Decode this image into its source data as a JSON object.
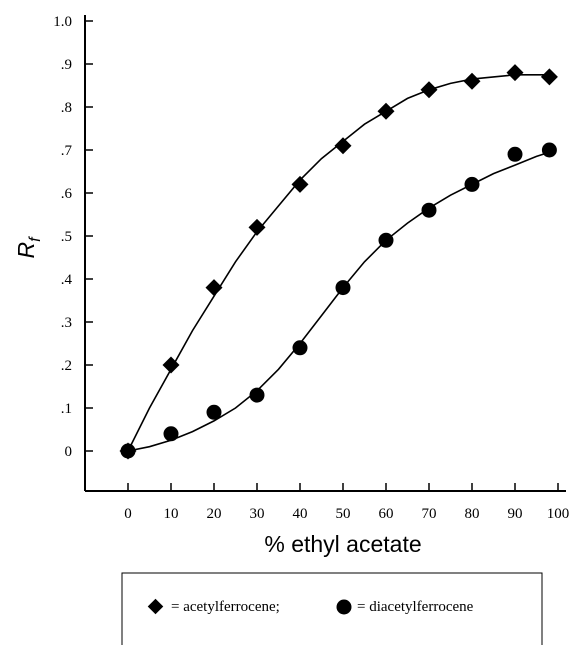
{
  "chart_data": {
    "type": "scatter",
    "title": "",
    "xlabel": "% ethyl acetate",
    "ylabel": "R",
    "ylabel_subscript": "f",
    "xlim": [
      -10,
      100
    ],
    "ylim": [
      -0.1,
      1.0
    ],
    "x_ticks": [
      0,
      10,
      20,
      30,
      40,
      50,
      60,
      70,
      80,
      90,
      100
    ],
    "x_tick_labels": [
      "0",
      "10",
      "20",
      "30",
      "40",
      "50",
      "60",
      "70",
      "80",
      "90",
      "100"
    ],
    "y_ticks": [
      0,
      0.1,
      0.2,
      0.3,
      0.4,
      0.5,
      0.6,
      0.7,
      0.8,
      0.9,
      1.0
    ],
    "y_tick_labels": [
      "0",
      ".1",
      ".2",
      ".3",
      ".4",
      ".5",
      ".6",
      ".7",
      ".8",
      ".9",
      "1.0"
    ],
    "grid": false,
    "legend_placement": "bottom",
    "series": [
      {
        "name": "acetylferrocene",
        "marker": "diamond",
        "x": [
          0,
          10,
          20,
          30,
          40,
          50,
          60,
          70,
          80,
          90,
          98
        ],
        "y": [
          0.0,
          0.2,
          0.38,
          0.52,
          0.62,
          0.71,
          0.79,
          0.84,
          0.86,
          0.88,
          0.87
        ],
        "fit_x": [
          0,
          5,
          10,
          15,
          20,
          25,
          30,
          35,
          40,
          45,
          50,
          55,
          60,
          65,
          70,
          75,
          80,
          85,
          90,
          95,
          98
        ],
        "fit_y": [
          0.0,
          0.1,
          0.19,
          0.28,
          0.36,
          0.44,
          0.51,
          0.57,
          0.63,
          0.68,
          0.72,
          0.76,
          0.79,
          0.82,
          0.84,
          0.855,
          0.865,
          0.87,
          0.875,
          0.875,
          0.875
        ]
      },
      {
        "name": "diacetylferrocene",
        "marker": "circle",
        "x": [
          0,
          10,
          20,
          30,
          40,
          50,
          60,
          70,
          80,
          90,
          98
        ],
        "y": [
          0.0,
          0.04,
          0.09,
          0.13,
          0.24,
          0.38,
          0.49,
          0.56,
          0.62,
          0.69,
          0.7
        ],
        "fit_x": [
          0,
          5,
          10,
          15,
          20,
          25,
          30,
          35,
          40,
          45,
          50,
          55,
          60,
          65,
          70,
          75,
          80,
          85,
          90,
          95,
          98
        ],
        "fit_y": [
          0.0,
          0.01,
          0.025,
          0.045,
          0.07,
          0.1,
          0.14,
          0.19,
          0.25,
          0.315,
          0.38,
          0.44,
          0.49,
          0.53,
          0.565,
          0.595,
          0.62,
          0.645,
          0.665,
          0.685,
          0.695
        ]
      }
    ],
    "legend_items": [
      {
        "label": "= acetylferrocene;",
        "marker": "diamond"
      },
      {
        "label": "= diacetylferrocene",
        "marker": "circle"
      }
    ]
  },
  "colors": {
    "ink": "#000000",
    "background": "#ffffff"
  }
}
